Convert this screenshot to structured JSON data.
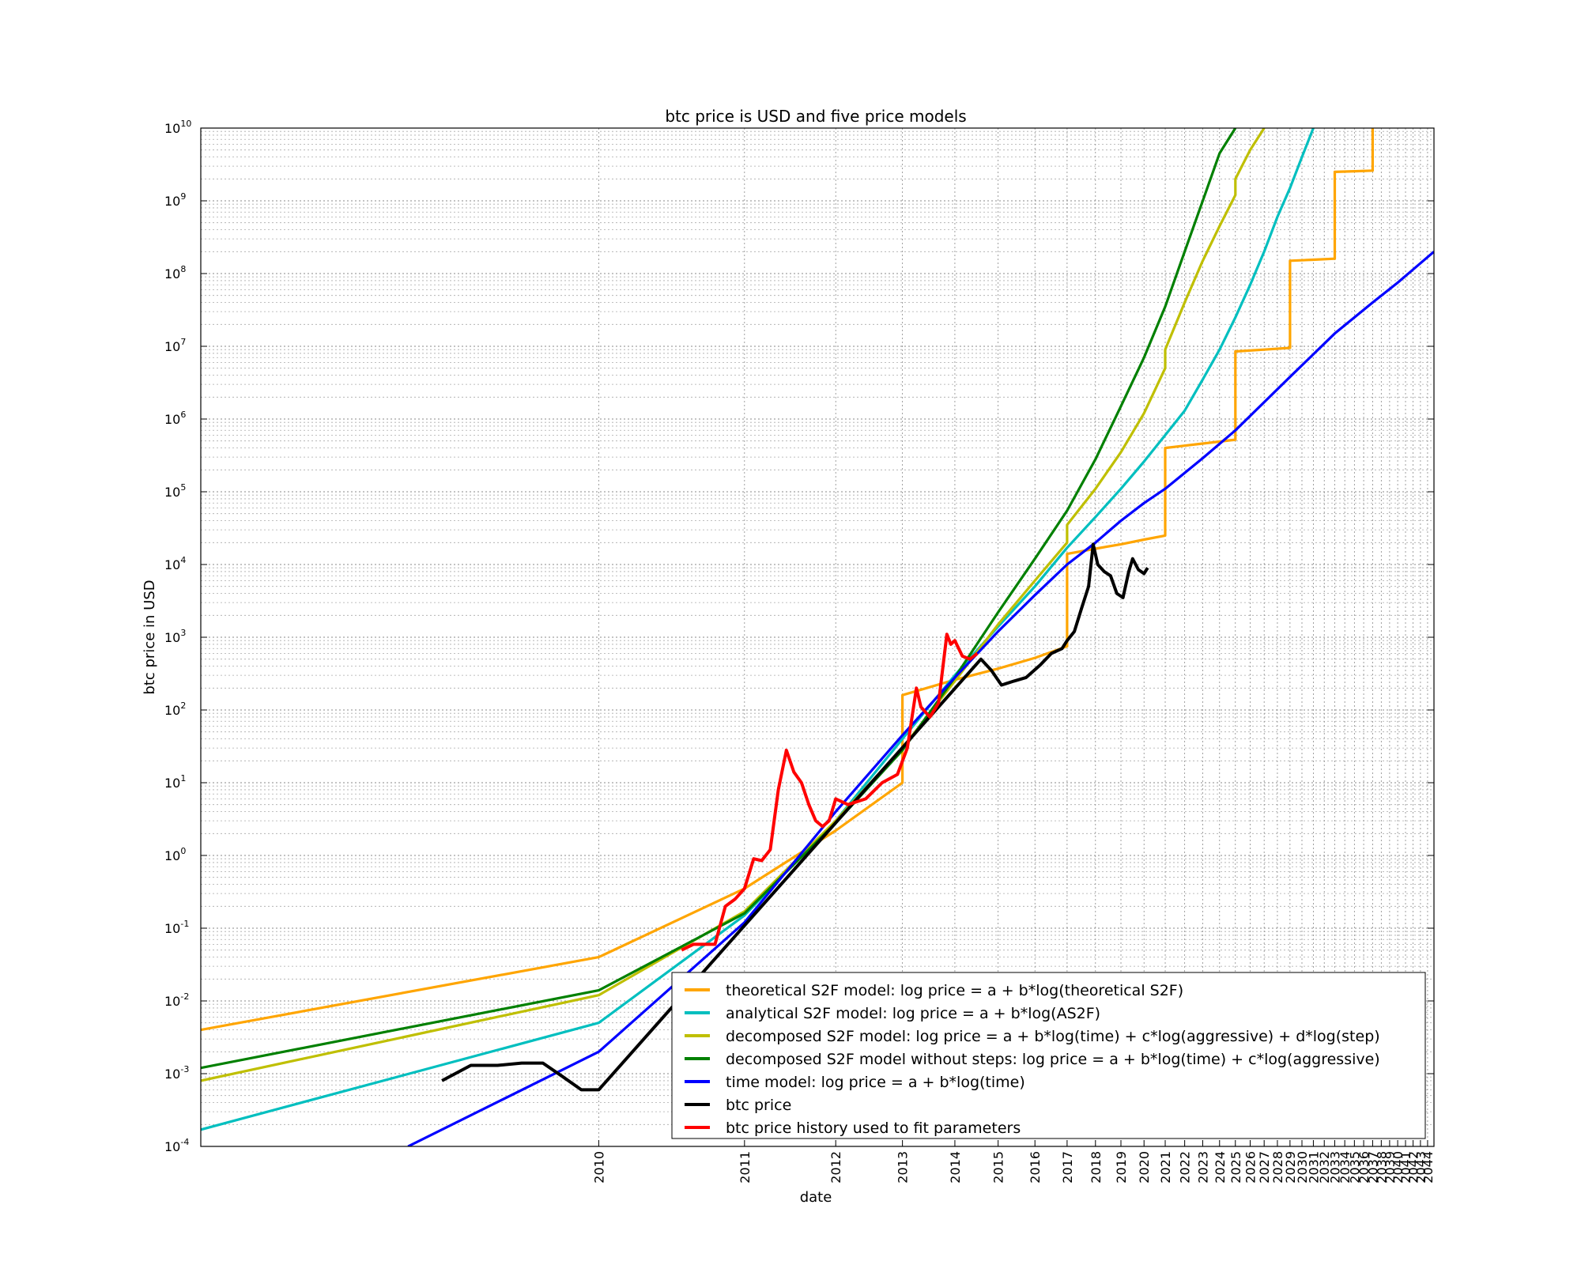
{
  "chart_data": {
    "type": "line",
    "title": "btc price is USD and five price models",
    "xlabel": "date",
    "ylabel": "btc price in USD",
    "y_scale": "log",
    "x_scale": "log of time since genesis (dates shown)",
    "ylim": [
      0.0001,
      10000000000
    ],
    "xlim": [
      "2009-01",
      "2044-12"
    ],
    "grid": true,
    "legend_position": "lower-right",
    "y_ticks": [
      {
        "base": "10",
        "exp": "-4"
      },
      {
        "base": "10",
        "exp": "-3"
      },
      {
        "base": "10",
        "exp": "-2"
      },
      {
        "base": "10",
        "exp": "-1"
      },
      {
        "base": "10",
        "exp": "0"
      },
      {
        "base": "10",
        "exp": "1"
      },
      {
        "base": "10",
        "exp": "2"
      },
      {
        "base": "10",
        "exp": "3"
      },
      {
        "base": "10",
        "exp": "4"
      },
      {
        "base": "10",
        "exp": "5"
      },
      {
        "base": "10",
        "exp": "6"
      },
      {
        "base": "10",
        "exp": "7"
      },
      {
        "base": "10",
        "exp": "8"
      },
      {
        "base": "10",
        "exp": "9"
      },
      {
        "base": "10",
        "exp": "10"
      }
    ],
    "x_ticks": [
      "2010",
      "2011",
      "2012",
      "2013",
      "2014",
      "2015",
      "2016",
      "2017",
      "2018",
      "2019",
      "2020",
      "2021",
      "2022",
      "2023",
      "2024",
      "2025",
      "2026",
      "2027",
      "2028",
      "2029",
      "2030",
      "2031",
      "2032",
      "2033",
      "2034",
      "2035",
      "2036",
      "2037",
      "2038",
      "2039",
      "2040",
      "2041",
      "2042",
      "2043",
      "2044"
    ],
    "series": [
      {
        "name": "theoretical S2F model: log price = a + b*log(theoretical S2F)",
        "color": "#ffa500",
        "x": [
          "2009-01",
          "2010-01",
          "2011-01",
          "2012-01",
          "2013-01",
          "2013-01",
          "2014-01",
          "2015-01",
          "2016-01",
          "2017-01",
          "2017-01",
          "2018-01",
          "2019-01",
          "2020-01",
          "2021-01",
          "2021-01",
          "2022-01",
          "2023-01",
          "2024-01",
          "2025-01",
          "2025-01",
          "2027-01",
          "2029-01",
          "2029-01",
          "2031-01",
          "2033-01",
          "2033-01",
          "2035-01",
          "2037-01",
          "2037-01"
        ],
        "y": [
          0.004,
          0.04,
          0.35,
          2.2,
          10,
          160,
          260,
          370,
          520,
          750,
          14000,
          16500,
          19000,
          22000,
          25000,
          400000,
          430000,
          460000,
          490000,
          520000,
          8500000,
          9000000,
          9500000,
          150000000,
          155000000,
          160000000,
          2500000000,
          2550000000,
          2600000000,
          10000000000
        ]
      },
      {
        "name": "analytical S2F model: log price = a + b*log(AS2F)",
        "color": "#00bfbf",
        "x": [
          "2009-01",
          "2010-01",
          "2011-01",
          "2012-01",
          "2013-01",
          "2014-01",
          "2015-01",
          "2016-01",
          "2017-01",
          "2018-01",
          "2019-01",
          "2020-01",
          "2021-01",
          "2022-01",
          "2023-01",
          "2024-01",
          "2025-01",
          "2026-01",
          "2027-01",
          "2028-01",
          "2029-01",
          "2030-01",
          "2031-01"
        ],
        "y": [
          0.00017,
          0.005,
          0.15,
          3,
          40,
          300,
          1400,
          5000,
          17000,
          45000,
          110000,
          260000,
          600000,
          1300000,
          3500000,
          9000000,
          25000000,
          70000000,
          200000000,
          600000000,
          1500000000,
          4000000000,
          10000000000
        ]
      },
      {
        "name": "decomposed S2F model: log price = a + b*log(time) + c*log(aggressive) + d*log(step)",
        "color": "#bfbf00",
        "x": [
          "2009-01",
          "2010-01",
          "2011-01",
          "2012-01",
          "2013-01",
          "2014-01",
          "2015-01",
          "2016-01",
          "2017-01",
          "2017-01",
          "2018-01",
          "2019-01",
          "2020-01",
          "2021-01",
          "2021-01",
          "2022-01",
          "2023-01",
          "2024-01",
          "2025-01",
          "2025-01",
          "2026-01",
          "2027-01"
        ],
        "y": [
          0.0008,
          0.012,
          0.17,
          3,
          30,
          250,
          1500,
          6000,
          20000,
          35000,
          110000,
          350000,
          1200000,
          5000000,
          9000000,
          40000000,
          150000000,
          450000000,
          1200000000,
          2000000000,
          5000000000,
          10000000000
        ]
      },
      {
        "name": "decomposed S2F model without steps: log price = a + b*log(time) + c*log(aggressive)",
        "color": "#008000",
        "x": [
          "2009-01",
          "2010-01",
          "2011-01",
          "2012-01",
          "2013-01",
          "2014-01",
          "2015-01",
          "2016-01",
          "2017-01",
          "2018-01",
          "2019-01",
          "2020-01",
          "2021-01",
          "2022-01",
          "2023-01",
          "2024-01",
          "2025-01"
        ],
        "y": [
          0.0012,
          0.014,
          0.16,
          2.8,
          28,
          280,
          2200,
          12000,
          55000,
          280000,
          1500000,
          7000000,
          35000000,
          200000000,
          1000000000,
          4500000000,
          10000000000
        ]
      },
      {
        "name": "time model: log price = a + b*log(time)",
        "color": "#0000ff",
        "x": [
          "2009-05",
          "2010-01",
          "2011-01",
          "2012-01",
          "2013-01",
          "2014-01",
          "2015-01",
          "2016-01",
          "2017-01",
          "2018-01",
          "2019-01",
          "2020-01",
          "2021-01",
          "2023-01",
          "2025-01",
          "2029-01",
          "2033-01",
          "2037-01",
          "2040-01",
          "2044-12"
        ],
        "y": [
          0.0001,
          0.002,
          0.12,
          4,
          45,
          280,
          1200,
          3800,
          10000,
          20000,
          40000,
          70000,
          110000,
          290000,
          700000,
          3800000,
          15000000,
          40000000,
          75000000,
          200000000
        ]
      },
      {
        "name": "btc price",
        "color": "#000000",
        "x": [
          "2009-06",
          "2009-07",
          "2009-08",
          "2009-09",
          "2009-10",
          "2009-11",
          "2009-12",
          "2010-01",
          "2014-08",
          "2014-11",
          "2015-02",
          "2015-06",
          "2015-10",
          "2016-03",
          "2016-07",
          "2016-11",
          "2017-01",
          "2017-04",
          "2017-07",
          "2017-10",
          "2017-12",
          "2018-02",
          "2018-05",
          "2018-08",
          "2018-11",
          "2019-02",
          "2019-05",
          "2019-07",
          "2019-10",
          "2020-01",
          "2020-03"
        ],
        "y": [
          0.0008,
          0.0013,
          0.0013,
          0.0014,
          0.0014,
          0.0009,
          0.0006,
          0.0006,
          500,
          350,
          220,
          250,
          280,
          420,
          600,
          700,
          900,
          1200,
          2500,
          5000,
          19000,
          10000,
          8000,
          7000,
          4000,
          3500,
          8000,
          12000,
          8500,
          7500,
          9000
        ]
      },
      {
        "name": "btc price history used to fit parameters",
        "color": "#ff0000",
        "x": [
          "2010-07",
          "2010-08",
          "2010-10",
          "2010-11",
          "2010-12",
          "2011-01",
          "2011-02",
          "2011-03",
          "2011-04",
          "2011-05",
          "2011-06",
          "2011-07",
          "2011-08",
          "2011-09",
          "2011-10",
          "2011-11",
          "2011-12",
          "2012-01",
          "2012-03",
          "2012-06",
          "2012-09",
          "2012-12",
          "2013-02",
          "2013-04",
          "2013-05",
          "2013-07",
          "2013-09",
          "2013-11",
          "2013-12",
          "2014-01",
          "2014-03",
          "2014-05",
          "2014-07"
        ],
        "y": [
          0.05,
          0.06,
          0.06,
          0.2,
          0.25,
          0.35,
          0.9,
          0.85,
          1.2,
          8,
          28,
          14,
          10,
          5,
          3,
          2.5,
          3,
          6,
          5,
          6,
          10,
          13,
          30,
          200,
          110,
          80,
          125,
          1100,
          800,
          900,
          550,
          500,
          600
        ]
      }
    ]
  }
}
